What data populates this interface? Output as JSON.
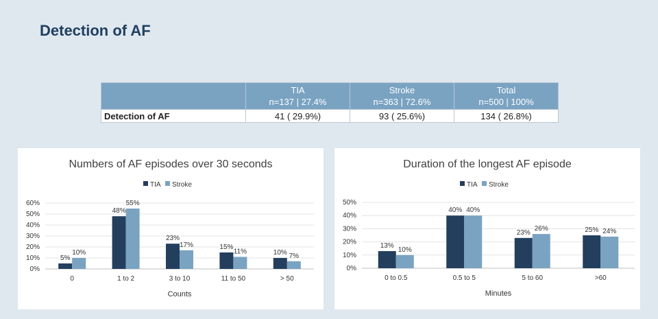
{
  "slide": {
    "title": "Detection of AF"
  },
  "table": {
    "headers": [
      {
        "line1": "",
        "line2": ""
      },
      {
        "line1": "TIA",
        "line2": "n=137 | 27.4%"
      },
      {
        "line1": "Stroke",
        "line2": "n=363 | 72.6%"
      },
      {
        "line1": "Total",
        "line2": "n=500 | 100%"
      }
    ],
    "rows": [
      {
        "label": "Detection of AF",
        "cells": [
          "41 ( 29.9%)",
          "93 ( 25.6%)",
          "134 ( 26.8%)"
        ]
      }
    ]
  },
  "colors": {
    "tia": "#243f5e",
    "stroke": "#7aa3c2"
  },
  "chart_data": [
    {
      "type": "bar",
      "title": "Numbers of AF episodes over 30 seconds",
      "xlabel": "Counts",
      "ylabel": "",
      "categories": [
        "0",
        "1 to 2",
        "3 to 10",
        "11 to 50",
        "> 50"
      ],
      "series": [
        {
          "name": "TIA",
          "values": [
            5,
            48,
            23,
            15,
            10
          ],
          "labels": [
            "5%",
            "48%",
            "23%",
            "15%",
            "10%"
          ]
        },
        {
          "name": "Stroke",
          "values": [
            10,
            55,
            17,
            11,
            7
          ],
          "labels": [
            "10%",
            "55%",
            "17%",
            "11%",
            "7%"
          ]
        }
      ],
      "ylim": [
        0,
        60
      ],
      "yticks": [
        "0%",
        "10%",
        "20%",
        "30%",
        "40%",
        "50%",
        "60%"
      ],
      "legend": "top-center",
      "grid": true
    },
    {
      "type": "bar",
      "title": "Duration of the longest AF episode",
      "xlabel": "Minutes",
      "ylabel": "",
      "categories": [
        "0 to 0.5",
        "0.5 to 5",
        "5 to 60",
        ">60"
      ],
      "series": [
        {
          "name": "TIA",
          "values": [
            13,
            40,
            23,
            25
          ],
          "labels": [
            "13%",
            "40%",
            "23%",
            "25%"
          ]
        },
        {
          "name": "Stroke",
          "values": [
            10,
            40,
            26,
            24
          ],
          "labels": [
            "10%",
            "40%",
            "26%",
            "24%"
          ]
        }
      ],
      "ylim": [
        0,
        50
      ],
      "yticks": [
        "0%",
        "10%",
        "20%",
        "30%",
        "40%",
        "50%"
      ],
      "legend": "top-center",
      "grid": true
    }
  ]
}
